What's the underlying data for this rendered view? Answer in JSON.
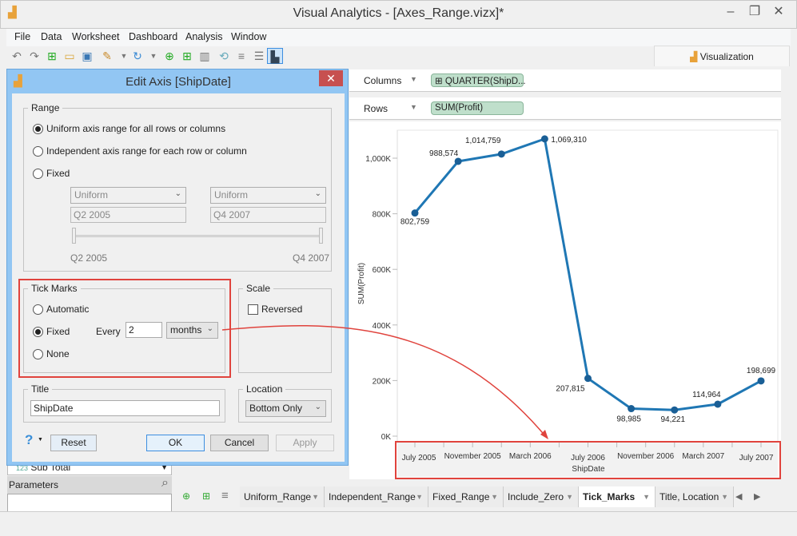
{
  "app": {
    "title": "Visual Analytics - [Axes_Range.vizx]*"
  },
  "menu": [
    "File",
    "Data",
    "Worksheet",
    "Dashboard",
    "Analysis",
    "Window"
  ],
  "window_controls": {
    "minimize": "–",
    "restore": "❐",
    "close": "✕"
  },
  "visualization_tab": "Visualization",
  "shelves": {
    "columns_label": "Columns",
    "columns_pill": "QUARTER(ShipD...",
    "rows_label": "Rows",
    "rows_pill": "SUM(Profit)"
  },
  "dialog": {
    "title": "Edit Axis [ShipDate]",
    "range": {
      "legend": "Range",
      "options": [
        "Uniform axis range for all rows or columns",
        "Independent axis range for each row or column",
        "Fixed"
      ],
      "selected": 0,
      "start_mode": "Uniform",
      "end_mode": "Uniform",
      "start_value": "Q2 2005",
      "end_value": "Q4 2007",
      "slider_min_label": "Q2 2005",
      "slider_max_label": "Q4 2007"
    },
    "tick_marks": {
      "legend": "Tick Marks",
      "options": [
        "Automatic",
        "Fixed",
        "None"
      ],
      "selected": 1,
      "every_label": "Every",
      "every_value": "2",
      "unit": "months"
    },
    "scale": {
      "legend": "Scale",
      "reversed_label": "Reversed",
      "reversed": false
    },
    "title_section": {
      "legend": "Title",
      "value": "ShipDate"
    },
    "location": {
      "legend": "Location",
      "value": "Bottom Only"
    },
    "buttons": {
      "help": "?",
      "reset": "Reset",
      "ok": "OK",
      "cancel": "Cancel",
      "apply": "Apply"
    }
  },
  "left_panel": {
    "subtotal": "Sub Total",
    "subtotal_prefix": "123",
    "parameters": "Parameters"
  },
  "sheet_tabs": [
    {
      "label": "Uniform_Range"
    },
    {
      "label": "Independent_Range"
    },
    {
      "label": "Fixed_Range"
    },
    {
      "label": "Include_Zero"
    },
    {
      "label": "Tick_Marks",
      "active": true
    },
    {
      "label": "Title, Location"
    }
  ],
  "chart_data": {
    "type": "line",
    "xlabel": "ShipDate",
    "ylabel": "SUM(Profit)",
    "x": [
      "2005-07",
      "2005-10",
      "2006-01",
      "2006-04",
      "2006-07",
      "2006-10",
      "2007-01",
      "2007-04",
      "2007-07"
    ],
    "values": [
      802759,
      988574,
      1014759,
      1069310,
      207815,
      98985,
      94221,
      114964,
      198699
    ],
    "data_labels": [
      "802,759",
      "988,574",
      "1,014,759",
      "1,069,310",
      "207,815",
      "98,985",
      "94,221",
      "114,964",
      "198,699"
    ],
    "y_ticks": [
      "0K",
      "200K",
      "400K",
      "600K",
      "800K",
      "1,000K"
    ],
    "y_tick_values": [
      0,
      200000,
      400000,
      600000,
      800000,
      1000000
    ],
    "x_tick_labels": [
      "July 2005",
      "November 2005",
      "March 2006",
      "July 2006",
      "November 2006",
      "March 2007",
      "July 2007"
    ],
    "x_tick_label_dates": [
      "2005-07",
      "2005-11",
      "2006-03",
      "2006-07",
      "2006-11",
      "2007-03",
      "2007-07"
    ],
    "x_tick_interval_months": 2,
    "xlim": [
      "2005-07",
      "2007-07"
    ],
    "ylim": [
      0,
      1090000
    ],
    "color": "#1f77b4",
    "annotation_color": "#e0433d"
  }
}
